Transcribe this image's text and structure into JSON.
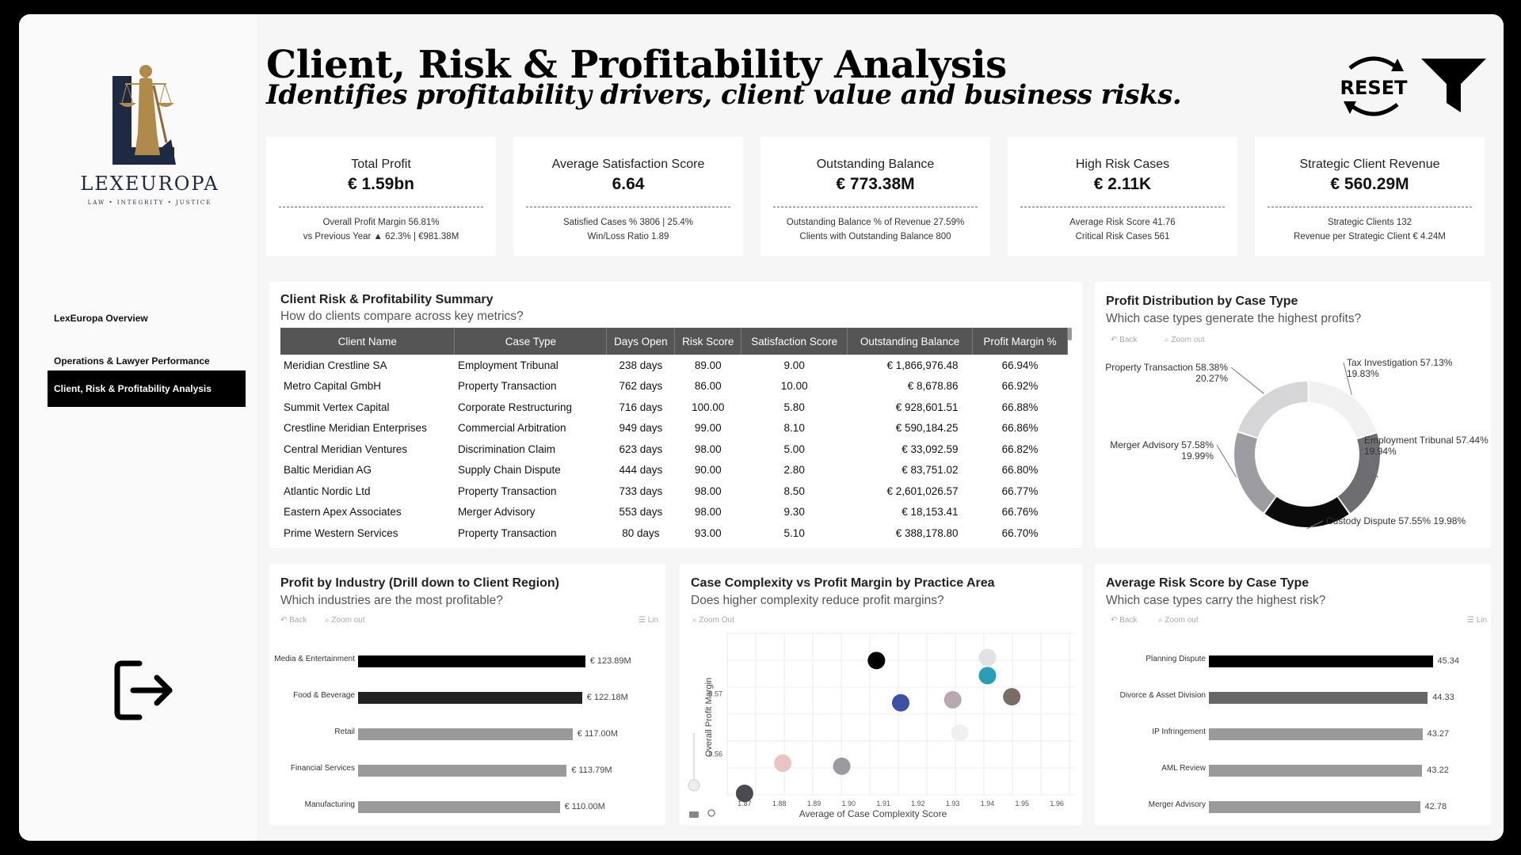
{
  "brand": {
    "name": "LEXEUROPA",
    "tagline": "LAW • INTEGRITY • JUSTICE"
  },
  "nav": [
    {
      "label": "LexEuropa Overview",
      "active": false
    },
    {
      "label": "Operations & Lawyer Performance",
      "active": false
    },
    {
      "label": "Client, Risk & Profitability Analysis",
      "active": true
    }
  ],
  "header": {
    "title": "Client, Risk & Profitability Analysis",
    "subtitle": "Identifies profitability drivers, client value and business risks.",
    "reset_label": "RESET"
  },
  "kpis": [
    {
      "label": "Total Profit",
      "value": "€ 1.59bn",
      "sub1": "Overall Profit Margin 56.81%",
      "sub2": "vs Previous Year ▲ 62.3% | €981.38M"
    },
    {
      "label": "Average Satisfaction Score",
      "value": "6.64",
      "sub1": "Satisfied Cases % 3806 | 25.4%",
      "sub2": "Win/Loss Ratio 1.89"
    },
    {
      "label": "Outstanding Balance",
      "value": "€ 773.38M",
      "sub1": "Outstanding Balance % of Revenue 27.59%",
      "sub2": "Clients with Outstanding Balance 800"
    },
    {
      "label": "High Risk Cases",
      "value": "€ 2.11K",
      "sub1": "Average Risk Score 41.76",
      "sub2": "Critical Risk Cases 561"
    },
    {
      "label": "Strategic Client Revenue",
      "value": "€ 560.29M",
      "sub1": "Strategic Clients 132",
      "sub2": "Revenue per Strategic Client € 4.24M"
    }
  ],
  "summary": {
    "title": "Client Risk & Profitability Summary",
    "subtitle": "How do clients compare across key metrics?",
    "columns": [
      "Client Name",
      "Case Type",
      "Days Open",
      "Risk Score",
      "Satisfaction Score",
      "Outstanding Balance",
      "Profit Margin %"
    ],
    "rows": [
      [
        "Meridian Crestline SA",
        "Employment Tribunal",
        "238 days",
        "89.00",
        "9.00",
        "€ 1,866,976.48",
        "66.94%"
      ],
      [
        "Metro Capital GmbH",
        "Property Transaction",
        "762 days",
        "86.00",
        "10.00",
        "€ 8,678.86",
        "66.92%"
      ],
      [
        "Summit Vertex Capital",
        "Corporate Restructuring",
        "716 days",
        "100.00",
        "5.80",
        "€ 928,601.51",
        "66.88%"
      ],
      [
        "Crestline Meridian Enterprises",
        "Commercial Arbitration",
        "949 days",
        "99.00",
        "8.10",
        "€ 590,184.25",
        "66.86%"
      ],
      [
        "Central Meridian Ventures",
        "Discrimination Claim",
        "623 days",
        "98.00",
        "5.00",
        "€ 33,092.59",
        "66.82%"
      ],
      [
        "Baltic Meridian AG",
        "Supply Chain Dispute",
        "444 days",
        "90.00",
        "2.80",
        "€ 83,751.02",
        "66.80%"
      ],
      [
        "Atlantic Nordic Ltd",
        "Property Transaction",
        "733 days",
        "98.00",
        "8.50",
        "€ 2,601,026.57",
        "66.77%"
      ],
      [
        "Eastern Apex Associates",
        "Merger Advisory",
        "553 days",
        "98.00",
        "9.30",
        "€ 18,153.41",
        "66.76%"
      ],
      [
        "Prime Western Services",
        "Property Transaction",
        "80 days",
        "93.00",
        "5.10",
        "€ 388,178.80",
        "66.70%"
      ]
    ]
  },
  "donut": {
    "title": "Profit Distribution by Case Type",
    "subtitle": "Which case types generate the highest profits?",
    "back": "Back",
    "zoom": "Zoom out",
    "chart_data": {
      "type": "pie",
      "categories": [
        "Tax Investigation",
        "Employment Tribunal",
        "Custody Dispute",
        "Merger Advisory",
        "Property Transaction"
      ],
      "values": [
        19.83,
        19.94,
        19.98,
        19.99,
        20.27
      ],
      "margins": [
        "57.13%",
        "57.44%",
        "57.55%",
        "57.58%",
        "58.38%"
      ],
      "shares": [
        "19.83%",
        "19.94%",
        "19.98%",
        "19.99%",
        "20.27%"
      ],
      "colors": [
        "#f1f1f1",
        "#6e6e72",
        "#0a0a0a",
        "#9c9ca2",
        "#d6d6d9"
      ]
    }
  },
  "industry": {
    "title": "Profit by Industry (Drill down to Client Region)",
    "subtitle": "Which industries are the most profitable?",
    "back": "Back",
    "zoom": "Zoom out",
    "lin": "Lin",
    "chart_data": {
      "type": "bar",
      "orientation": "horizontal",
      "categories": [
        "Media & Entertainment",
        "Food & Beverage",
        "Retail",
        "Financial Services",
        "Manufacturing"
      ],
      "values": [
        123.89,
        122.18,
        117.0,
        113.79,
        110.0
      ],
      "labels": [
        "€ 123.89M",
        "€ 122.18M",
        "€ 117.00M",
        "€ 113.79M",
        "€ 110.00M"
      ],
      "colors": [
        "#000000",
        "#222222",
        "#9a9a9a",
        "#9a9a9a",
        "#9a9a9a"
      ],
      "xlim": [
        0,
        140
      ]
    }
  },
  "scatter": {
    "title": "Case Complexity vs Profit Margin by Practice Area",
    "subtitle": "Does higher complexity reduce profit margins?",
    "zoom": "Zoom Out",
    "chart_data": {
      "type": "scatter",
      "xlabel": "Average of Case Complexity Score",
      "ylabel": "Overall Profit Margin",
      "xlim": [
        1.865,
        1.965
      ],
      "ylim": [
        0.553,
        0.58
      ],
      "xticks": [
        "1.87",
        "1.88",
        "1.89",
        "1.90",
        "1.91",
        "1.92",
        "1.93",
        "1.94",
        "1.95",
        "1.96"
      ],
      "xtick_values": [
        1.87,
        1.88,
        1.89,
        1.9,
        1.91,
        1.92,
        1.93,
        1.94,
        1.95,
        1.96
      ],
      "yticks": [
        "0.56",
        "0.57"
      ],
      "ytick_values": [
        0.56,
        0.57
      ],
      "points": [
        {
          "x": 1.87,
          "y": 0.5535,
          "color": "#4a4a50"
        },
        {
          "x": 1.881,
          "y": 0.5585,
          "color": "#e8c4c4"
        },
        {
          "x": 1.898,
          "y": 0.558,
          "color": "#9a9aa2"
        },
        {
          "x": 1.908,
          "y": 0.5755,
          "color": "#000000"
        },
        {
          "x": 1.915,
          "y": 0.5685,
          "color": "#3e4fa6"
        },
        {
          "x": 1.93,
          "y": 0.569,
          "color": "#b8a8b0"
        },
        {
          "x": 1.932,
          "y": 0.5635,
          "color": "#f0f0f0"
        },
        {
          "x": 1.94,
          "y": 0.576,
          "color": "#e2e2e2"
        },
        {
          "x": 1.94,
          "y": 0.573,
          "color": "#2a9fb4"
        },
        {
          "x": 1.947,
          "y": 0.5695,
          "color": "#7a6e64"
        }
      ]
    }
  },
  "risk": {
    "title": "Average Risk Score by Case Type",
    "subtitle": "Which case types carry the highest risk?",
    "back": "Back",
    "zoom": "Zoom out",
    "lin": "Lin",
    "chart_data": {
      "type": "bar",
      "orientation": "horizontal",
      "categories": [
        "Planning Dispute",
        "Divorce & Asset Division",
        "IP Infringement",
        "AML Review",
        "Merger Advisory"
      ],
      "values": [
        45.34,
        44.33,
        43.27,
        43.22,
        42.78
      ],
      "labels": [
        "45.34",
        "44.33",
        "43.27",
        "43.22",
        "42.78"
      ],
      "colors": [
        "#000000",
        "#666666",
        "#9a9a9a",
        "#9a9a9a",
        "#9a9a9a"
      ],
      "xlim": [
        0,
        52
      ]
    }
  }
}
